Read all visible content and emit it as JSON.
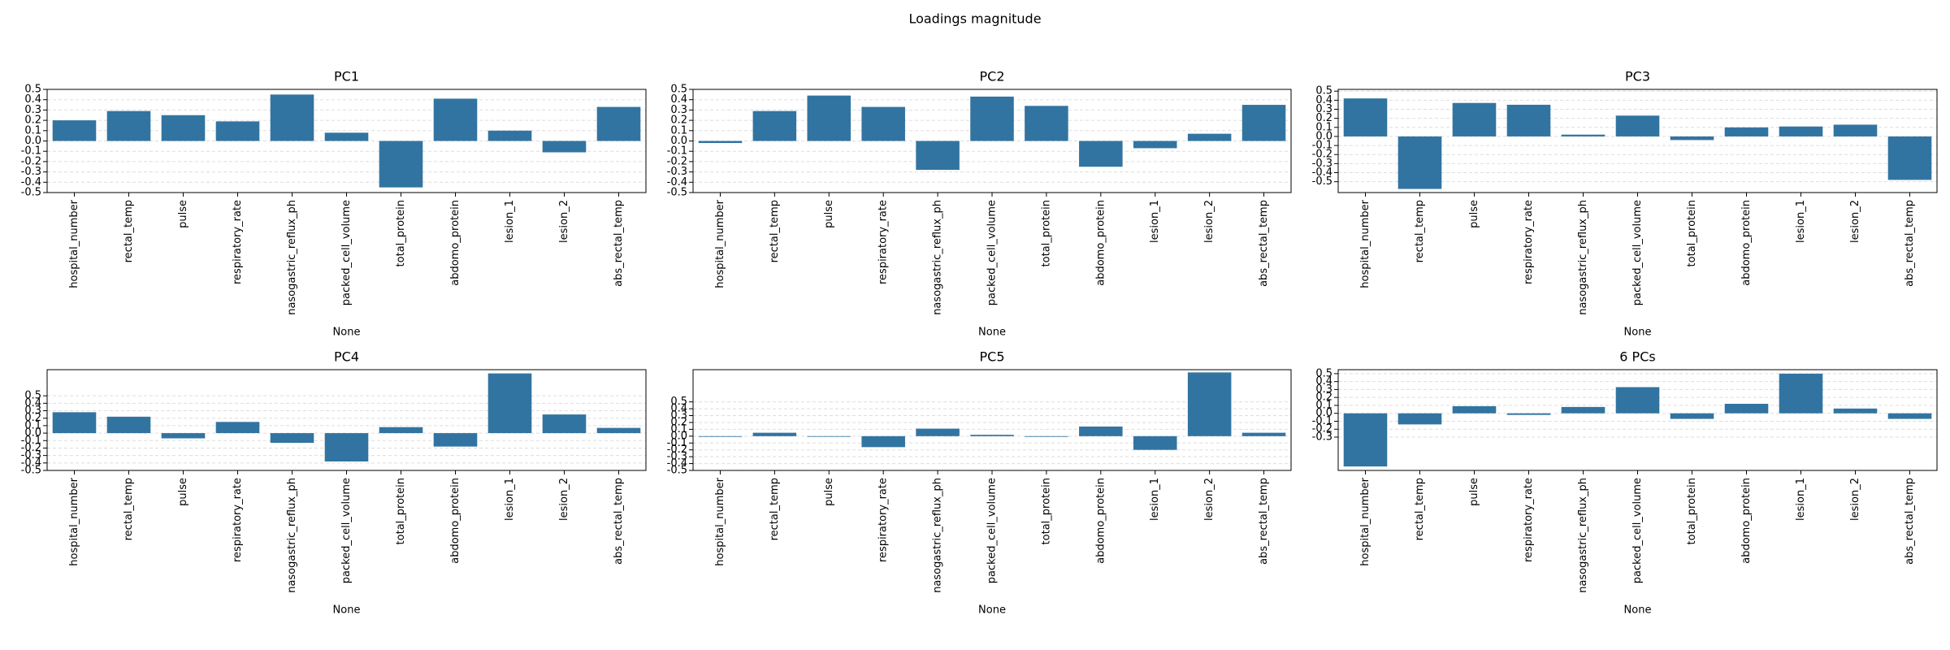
{
  "title": "Loadings magnitude",
  "chart_data": [
    {
      "type": "bar",
      "title": "PC1",
      "xlabel": "None",
      "color": "#3274a1",
      "grid": true,
      "categories": [
        "hospital_number",
        "rectal_temp",
        "pulse",
        "respiratory_rate",
        "nasogastric_reflux_ph",
        "packed_cell_volume",
        "total_protein",
        "abdomo_protein",
        "lesion_1",
        "lesion_2",
        "abs_rectal_temp"
      ],
      "values": [
        0.2,
        0.29,
        0.25,
        0.19,
        0.45,
        0.08,
        -0.45,
        0.41,
        0.1,
        -0.11,
        0.33
      ],
      "ylim": [
        -0.5,
        0.5
      ],
      "yticks": [
        -0.5,
        -0.4,
        -0.3,
        -0.2,
        -0.1,
        {
          "value": 0,
          "label": "0.0"
        },
        0.1,
        0.2,
        0.3,
        0.4,
        0.5
      ]
    },
    {
      "type": "bar",
      "title": "PC2",
      "xlabel": "None",
      "color": "#3274a1",
      "grid": true,
      "categories": [
        "hospital_number",
        "rectal_temp",
        "pulse",
        "respiratory_rate",
        "nasogastric_reflux_ph",
        "packed_cell_volume",
        "total_protein",
        "abdomo_protein",
        "lesion_1",
        "lesion_2",
        "abs_rectal_temp"
      ],
      "values": [
        -0.02,
        0.29,
        0.44,
        0.33,
        -0.28,
        0.43,
        0.34,
        -0.25,
        -0.07,
        0.07,
        0.35
      ],
      "ylim": [
        -0.5,
        0.5
      ],
      "yticks": [
        -0.5,
        -0.4,
        -0.3,
        -0.2,
        -0.1,
        {
          "value": 0,
          "label": "0.0"
        },
        0.1,
        0.2,
        0.3,
        0.4,
        0.5
      ]
    },
    {
      "type": "bar",
      "title": "PC3",
      "xlabel": "None",
      "color": "#3274a1",
      "grid": true,
      "categories": [
        "hospital_number",
        "rectal_temp",
        "pulse",
        "respiratory_rate",
        "nasogastric_reflux_ph",
        "packed_cell_volume",
        "total_protein",
        "abdomo_protein",
        "lesion_1",
        "lesion_2",
        "abs_rectal_temp"
      ],
      "values": [
        0.42,
        -0.58,
        0.37,
        0.35,
        0.02,
        0.23,
        -0.04,
        0.1,
        0.11,
        0.13,
        -0.48
      ],
      "ylim": [
        -0.62,
        0.52
      ],
      "yticks": [
        -0.5,
        -0.4,
        -0.3,
        -0.2,
        -0.1,
        {
          "value": 0,
          "label": "0.0"
        },
        0.1,
        0.2,
        0.3,
        0.4,
        0.5
      ]
    },
    {
      "type": "bar",
      "title": "PC4",
      "xlabel": "None",
      "color": "#3274a1",
      "grid": true,
      "categories": [
        "hospital_number",
        "rectal_temp",
        "pulse",
        "respiratory_rate",
        "nasogastric_reflux_ph",
        "packed_cell_volume",
        "total_protein",
        "abdomo_protein",
        "lesion_1",
        "lesion_2",
        "abs_rectal_temp"
      ],
      "values": [
        0.28,
        0.22,
        -0.07,
        0.15,
        -0.13,
        -0.38,
        0.08,
        -0.18,
        0.8,
        0.25,
        0.07
      ],
      "ylim": [
        -0.5,
        0.85
      ],
      "yticks": [
        -0.5,
        -0.4,
        -0.3,
        -0.2,
        -0.1,
        {
          "value": 0,
          "label": "0.0"
        },
        0.1,
        0.2,
        0.3,
        0.4,
        0.5
      ]
    },
    {
      "type": "bar",
      "title": "PC5",
      "xlabel": "None",
      "color": "#3274a1",
      "grid": true,
      "categories": [
        "hospital_number",
        "rectal_temp",
        "pulse",
        "respiratory_rate",
        "nasogastric_reflux_ph",
        "packed_cell_volume",
        "total_protein",
        "abdomo_protein",
        "lesion_1",
        "lesion_2",
        "abs_rectal_temp"
      ],
      "values": [
        -0.01,
        0.05,
        0.0,
        -0.16,
        0.11,
        0.02,
        -0.01,
        0.14,
        -0.2,
        0.93,
        0.05
      ],
      "ylim": [
        -0.5,
        0.97
      ],
      "yticks": [
        -0.5,
        -0.4,
        -0.3,
        -0.2,
        -0.1,
        {
          "value": 0,
          "label": "0.0"
        },
        0.1,
        0.2,
        0.3,
        0.4,
        0.5
      ]
    },
    {
      "type": "bar",
      "title": "6 PCs",
      "xlabel": "None",
      "color": "#3274a1",
      "grid": true,
      "categories": [
        "hospital_number",
        "rectal_temp",
        "pulse",
        "respiratory_rate",
        "nasogastric_reflux_ph",
        "packed_cell_volume",
        "total_protein",
        "abdomo_protein",
        "lesion_1",
        "lesion_2",
        "abs_rectal_temp"
      ],
      "values": [
        -0.67,
        -0.14,
        0.09,
        -0.02,
        0.08,
        0.33,
        -0.07,
        0.12,
        0.5,
        0.06,
        -0.07
      ],
      "ylim": [
        -0.72,
        0.55
      ],
      "yticks": [
        -0.3,
        -0.2,
        -0.1,
        {
          "value": 0,
          "label": "0.0"
        },
        0.1,
        0.2,
        0.3,
        0.4,
        0.5
      ]
    }
  ]
}
